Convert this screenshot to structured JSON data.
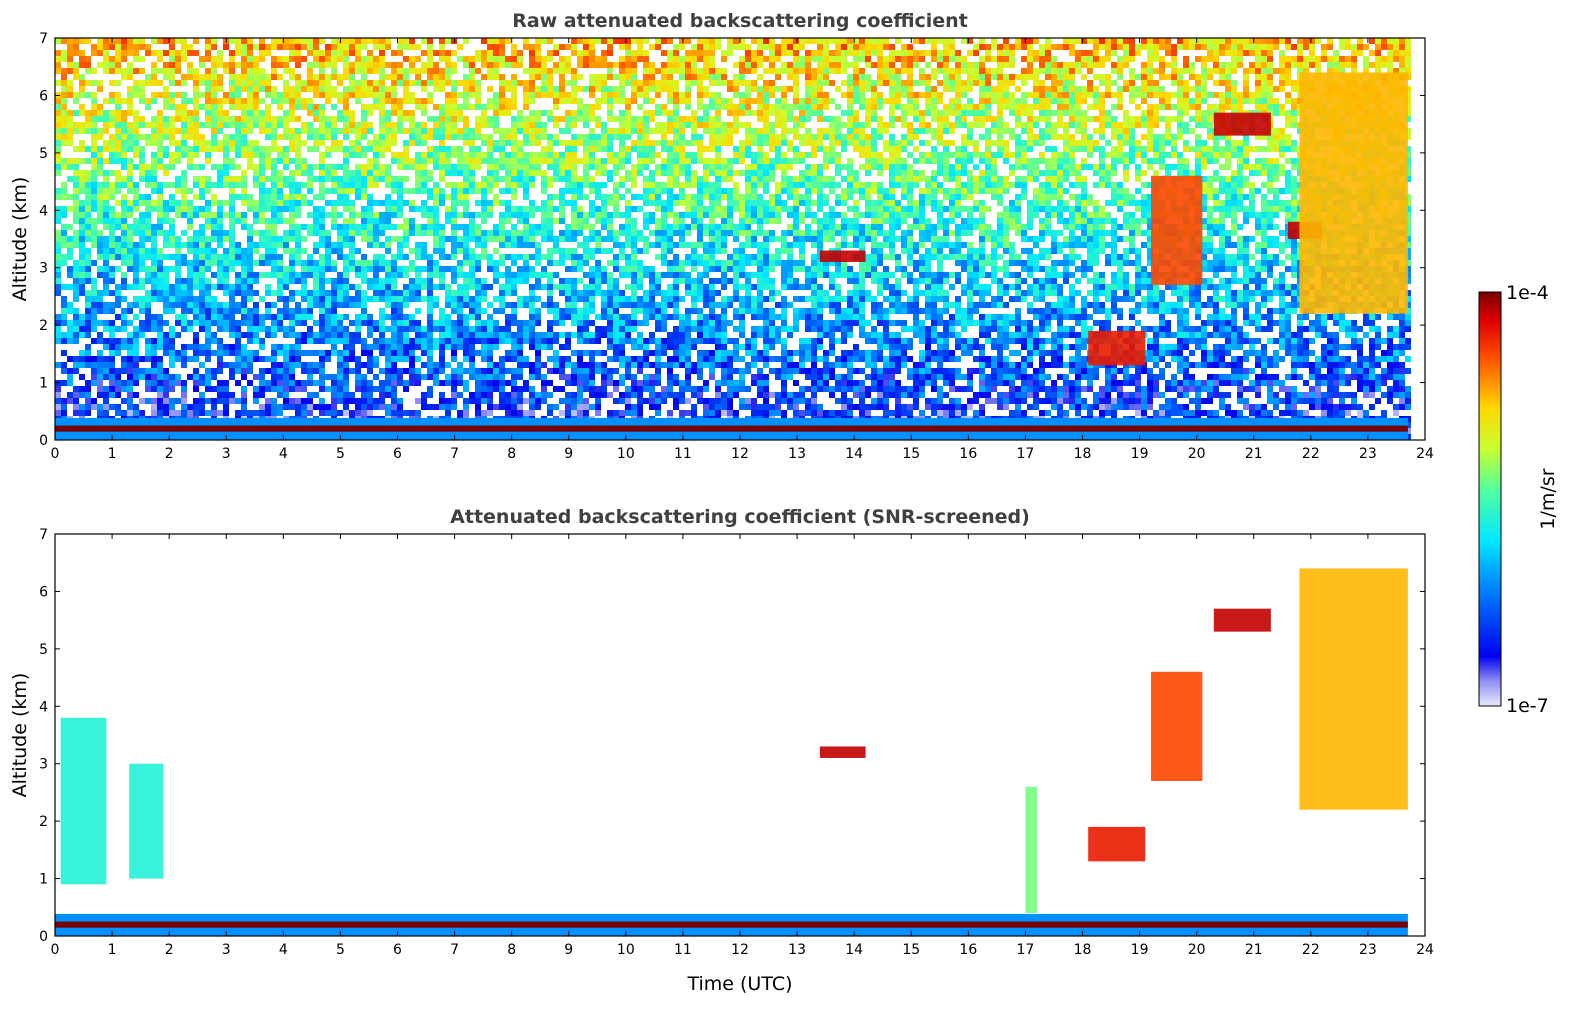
{
  "chart_data": [
    {
      "type": "heatmap",
      "title": "Raw attenuated backscattering coefficient",
      "xlabel": "",
      "ylabel": "Altitude (km)",
      "xlim": [
        0,
        24
      ],
      "ylim": [
        0,
        7
      ],
      "xticks": [
        "0",
        "1",
        "2",
        "3",
        "4",
        "5",
        "6",
        "7",
        "8",
        "9",
        "10",
        "11",
        "12",
        "13",
        "14",
        "15",
        "16",
        "17",
        "18",
        "19",
        "20",
        "21",
        "22",
        "23",
        "24"
      ],
      "yticks": [
        "0",
        "1",
        "2",
        "3",
        "4",
        "5",
        "6",
        "7"
      ],
      "colorscale": "jet",
      "features": [
        {
          "kind": "boundary-layer",
          "t_start": 0,
          "t_end": 23.7,
          "altitude_km": 0.2,
          "level": 1.0
        },
        {
          "kind": "cloud",
          "t": [
            13.4,
            14.2
          ],
          "z": [
            3.1,
            3.3
          ],
          "level": 0.95
        },
        {
          "kind": "cloud",
          "t": [
            18.1,
            19.1
          ],
          "z": [
            1.3,
            1.9
          ],
          "level": 0.9
        },
        {
          "kind": "cloud",
          "t": [
            19.2,
            20.1
          ],
          "z": [
            2.7,
            4.6
          ],
          "level": 0.85
        },
        {
          "kind": "cloud",
          "t": [
            20.3,
            21.3
          ],
          "z": [
            5.3,
            5.7
          ],
          "level": 0.95
        },
        {
          "kind": "cloud",
          "t": [
            21.6,
            22.2
          ],
          "z": [
            3.5,
            3.8
          ],
          "level": 0.95
        },
        {
          "kind": "cloud",
          "t": [
            21.8,
            23.7
          ],
          "z": [
            2.2,
            6.4
          ],
          "level": 0.75
        }
      ]
    },
    {
      "type": "heatmap",
      "title": "Attenuated backscattering coefficient (SNR-screened)",
      "xlabel": "Time (UTC)",
      "ylabel": "Altitude (km)",
      "xlim": [
        0,
        24
      ],
      "ylim": [
        0,
        7
      ],
      "xticks": [
        "0",
        "1",
        "2",
        "3",
        "4",
        "5",
        "6",
        "7",
        "8",
        "9",
        "10",
        "11",
        "12",
        "13",
        "14",
        "15",
        "16",
        "17",
        "18",
        "19",
        "20",
        "21",
        "22",
        "23",
        "24"
      ],
      "yticks": [
        "0",
        "1",
        "2",
        "3",
        "4",
        "5",
        "6",
        "7"
      ],
      "colorscale": "jet",
      "features": [
        {
          "kind": "boundary-layer",
          "t_start": 0,
          "t_end": 23.7,
          "altitude_km": 0.2,
          "level": 1.0
        },
        {
          "kind": "cloud",
          "t": [
            0.1,
            0.9
          ],
          "z": [
            0.9,
            3.8
          ],
          "level": 0.45
        },
        {
          "kind": "cloud",
          "t": [
            1.3,
            1.9
          ],
          "z": [
            1.0,
            3.0
          ],
          "level": 0.45
        },
        {
          "kind": "cloud",
          "t": [
            13.4,
            14.2
          ],
          "z": [
            3.1,
            3.3
          ],
          "level": 0.95
        },
        {
          "kind": "cloud",
          "t": [
            17.0,
            17.2
          ],
          "z": [
            0.4,
            2.6
          ],
          "level": 0.55
        },
        {
          "kind": "cloud",
          "t": [
            18.1,
            19.1
          ],
          "z": [
            1.3,
            1.9
          ],
          "level": 0.9
        },
        {
          "kind": "cloud",
          "t": [
            19.2,
            20.1
          ],
          "z": [
            2.7,
            4.6
          ],
          "level": 0.85
        },
        {
          "kind": "cloud",
          "t": [
            20.3,
            21.3
          ],
          "z": [
            5.3,
            5.7
          ],
          "level": 0.95
        },
        {
          "kind": "cloud",
          "t": [
            21.8,
            23.7
          ],
          "z": [
            2.2,
            6.4
          ],
          "level": 0.75
        }
      ]
    }
  ],
  "colorbar": {
    "label": "1/m/sr",
    "max_label": "1e-4",
    "min_label": "1e-7",
    "colorscale": "jet"
  }
}
